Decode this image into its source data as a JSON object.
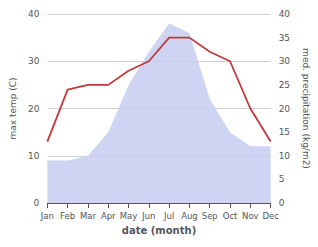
{
  "chart_data": {
    "type": "line",
    "xlabel": "date (month)",
    "ylabel": "max temp (C)",
    "y2label": "med. precipitation (kg/m2)",
    "categories": [
      "Jan",
      "Feb",
      "Mar",
      "Apr",
      "May",
      "Jun",
      "Jul",
      "Aug",
      "Sep",
      "Oct",
      "Nov",
      "Dec"
    ],
    "series": [
      {
        "type": "area",
        "color": "#c5cdf0",
        "axis": "y2",
        "values": [
          9,
          9,
          10,
          15,
          25,
          32,
          38,
          36,
          22,
          15,
          12,
          12
        ]
      },
      {
        "type": "line",
        "color": "#c0393b",
        "values": [
          13,
          24,
          25,
          25,
          28,
          30,
          35,
          35,
          32,
          30,
          20,
          13
        ]
      }
    ],
    "ylim": [
      0,
      40
    ],
    "yticks": [
      0,
      10,
      20,
      30,
      40
    ],
    "y2lim": [
      0,
      40
    ],
    "y2ticks": [
      0,
      5,
      10,
      15,
      20,
      25,
      30,
      35,
      40
    ],
    "grid": true
  }
}
